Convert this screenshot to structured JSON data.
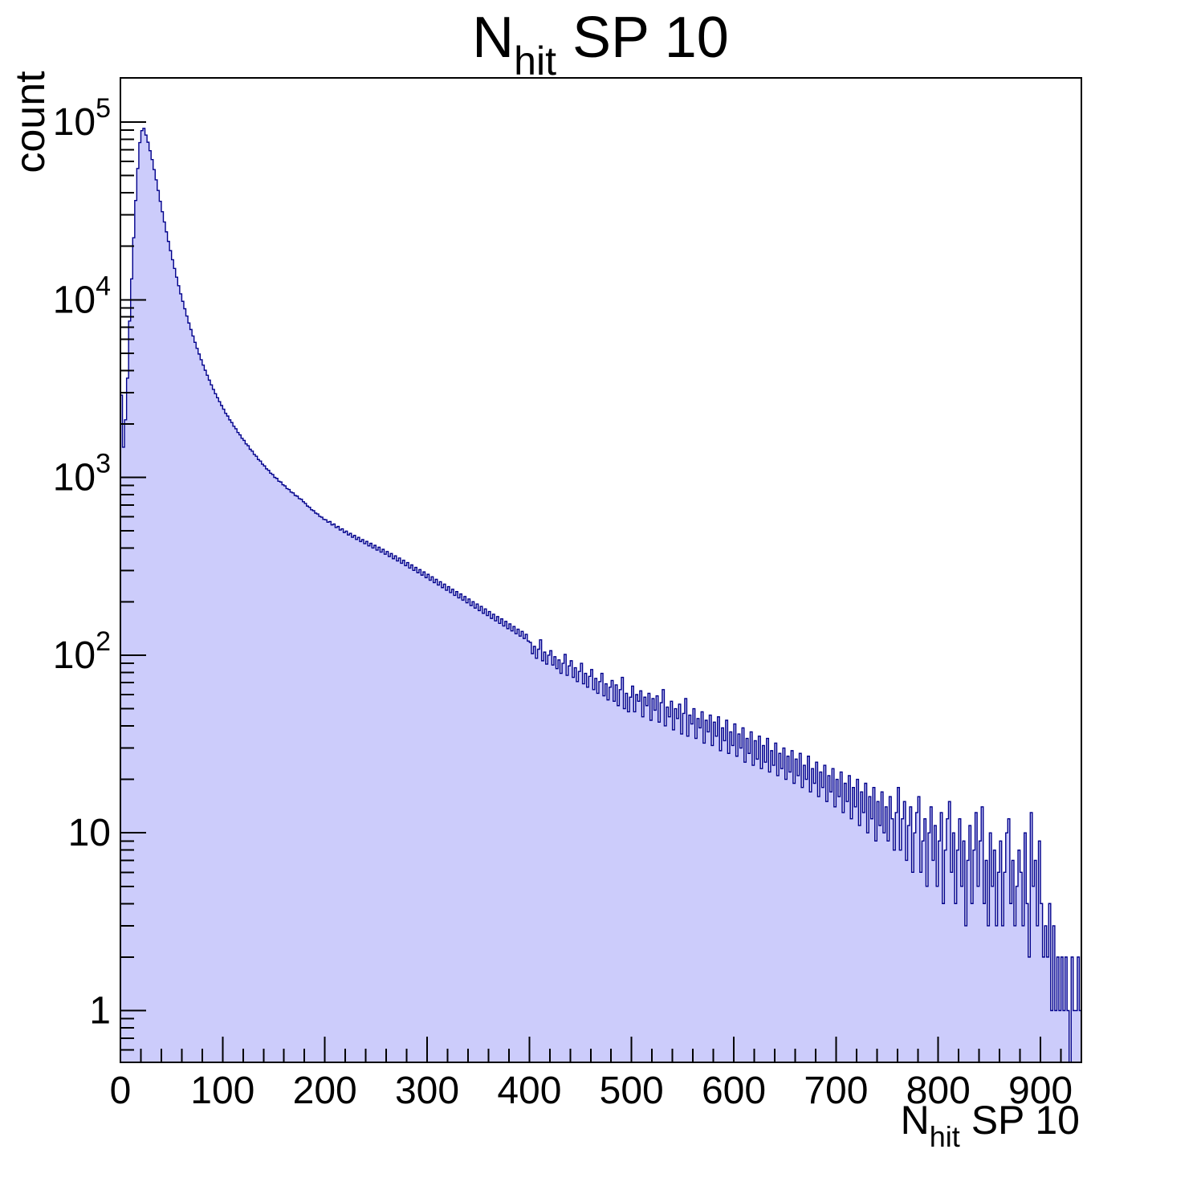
{
  "title": {
    "prefix": "N",
    "subscript": "hit",
    "suffix": " SP 10"
  },
  "y_axis": {
    "title": "count",
    "tick_labels": [
      {
        "base": "1",
        "exp": "",
        "value": 1
      },
      {
        "base": "10",
        "exp": "",
        "value": 10
      },
      {
        "base": "10",
        "exp": "2",
        "value": 100
      },
      {
        "base": "10",
        "exp": "3",
        "value": 1000
      },
      {
        "base": "10",
        "exp": "4",
        "value": 10000
      },
      {
        "base": "10",
        "exp": "5",
        "value": 100000
      }
    ]
  },
  "x_axis": {
    "title_prefix": "N",
    "title_subscript": "hit",
    "title_suffix": " SP 10",
    "tick_labels": [
      "0",
      "100",
      "200",
      "300",
      "400",
      "500",
      "600",
      "700",
      "800",
      "900"
    ],
    "major_tick_values": [
      0,
      100,
      200,
      300,
      400,
      500,
      600,
      700,
      800,
      900
    ],
    "minor_tick_step": 20
  },
  "colors": {
    "fill": "#ccccfb",
    "line": "#00008b",
    "axis": "#000000",
    "text": "#000000",
    "background": "#ffffff"
  },
  "chart_data": {
    "type": "bar",
    "subtype": "step-histogram",
    "title": "N_{hit} SP 10",
    "xlabel": "N_{hit} SP 10",
    "ylabel": "count",
    "x_range": [
      0,
      940
    ],
    "y_range": [
      0.51,
      180000
    ],
    "y_scale": "log10",
    "grid": false,
    "legend": "none",
    "bin_start": 0,
    "bin_width": 2,
    "n_bins": 470,
    "peak": {
      "x": 22,
      "count": 92230
    },
    "bins": [
      2905,
      1480,
      2110,
      3620,
      7590,
      13110,
      22340,
      36190,
      54820,
      76630,
      89480,
      92230,
      84500,
      77000,
      69000,
      61500,
      54000,
      47300,
      41200,
      35800,
      31300,
      27400,
      24100,
      21300,
      18900,
      16800,
      15000,
      13400,
      12000,
      10800,
      9800,
      8900,
      8100,
      7400,
      6800,
      6250,
      5760,
      5330,
      4950,
      4600,
      4290,
      4010,
      3760,
      3530,
      3320,
      3130,
      2960,
      2810,
      2670,
      2540,
      2423,
      2297,
      2216,
      2109,
      2038,
      1941,
      1879,
      1791,
      1737,
      1662,
      1617,
      1544,
      1509,
      1441,
      1407,
      1348,
      1317,
      1262,
      1237,
      1188,
      1161,
      1118,
      1097,
      1056,
      1039,
      1001,
      988,
      952,
      943,
      910,
      897,
      866,
      856,
      827,
      819,
      792,
      785,
      760,
      754,
      730,
      714,
      690,
      680,
      658,
      650,
      630,
      623,
      604,
      598,
      581,
      578,
      560,
      565,
      541,
      547,
      523,
      530,
      506,
      514,
      490,
      499,
      475,
      485,
      461,
      472,
      448,
      460,
      436,
      447,
      424,
      437,
      412,
      426,
      401,
      415,
      390,
      405,
      380,
      394,
      370,
      383,
      359,
      373,
      349,
      362,
      339,
      352,
      329,
      342,
      319,
      332,
      309,
      322,
      300,
      312,
      291,
      303,
      282,
      294,
      273,
      285,
      264,
      276,
      256,
      267,
      248,
      259,
      240,
      251,
      232,
      243,
      225,
      235,
      217,
      228,
      210,
      221,
      204,
      214,
      197,
      207,
      190,
      200,
      184,
      194,
      178,
      188,
      172,
      182,
      167,
      176,
      161,
      170,
      156,
      165,
      151,
      160,
      146,
      155,
      141,
      150,
      137,
      145,
      132,
      140,
      128,
      136,
      124,
      131,
      120,
      118,
      102,
      112,
      96,
      108,
      122,
      93,
      104,
      89,
      100,
      106,
      88,
      98,
      84,
      94,
      79,
      90,
      101,
      77,
      87,
      93,
      75,
      85,
      71,
      81,
      90,
      69,
      79,
      66,
      76,
      83,
      64,
      74,
      61,
      71,
      79,
      59,
      69,
      56,
      66,
      72,
      55,
      68,
      52,
      64,
      75,
      50,
      61,
      48,
      58,
      67,
      48,
      60,
      55,
      63,
      45,
      58,
      52,
      61,
      43,
      57,
      49,
      59,
      42,
      54,
      64,
      40,
      51,
      45,
      55,
      38,
      50,
      44,
      53,
      36,
      47,
      57,
      35,
      46,
      41,
      50,
      34,
      44,
      39,
      48,
      32,
      43,
      37,
      46,
      31,
      42,
      35,
      45,
      29,
      39,
      33,
      43,
      28,
      37,
      31,
      41,
      27,
      36,
      30,
      39,
      25,
      34,
      28,
      37,
      24,
      33,
      26,
      35,
      23,
      31,
      25,
      34,
      22,
      29,
      24,
      32,
      21,
      28,
      23,
      30,
      20,
      27,
      22,
      29,
      19,
      26,
      21,
      28,
      18,
      24,
      20,
      27,
      17,
      23,
      19,
      25,
      16,
      22,
      18,
      24,
      15,
      21,
      17,
      23,
      14,
      20,
      16,
      22,
      13,
      19,
      15,
      21,
      12,
      18,
      14,
      20,
      11,
      17,
      13,
      19,
      10,
      16,
      12,
      18,
      9,
      15,
      11,
      17,
      10,
      14,
      9,
      16,
      12,
      8,
      13,
      18,
      8,
      12,
      15,
      7,
      11,
      14,
      6,
      10,
      13,
      16,
      6,
      9,
      12,
      5,
      10,
      14,
      7,
      11,
      5,
      9,
      13,
      4,
      8,
      12,
      15,
      6,
      10,
      4,
      8,
      12,
      5,
      9,
      3,
      7,
      11,
      4,
      8,
      13,
      5,
      9,
      14,
      4,
      7,
      3,
      10,
      5,
      8,
      3,
      6,
      9,
      3,
      6,
      10,
      12,
      4,
      7,
      3,
      5,
      8,
      6,
      3,
      10,
      4,
      2,
      13,
      5,
      7,
      3,
      9,
      4,
      2,
      3,
      2,
      4,
      1,
      3,
      1,
      2,
      1,
      2,
      1,
      2,
      1,
      0,
      2,
      1,
      1,
      2,
      1
    ]
  }
}
